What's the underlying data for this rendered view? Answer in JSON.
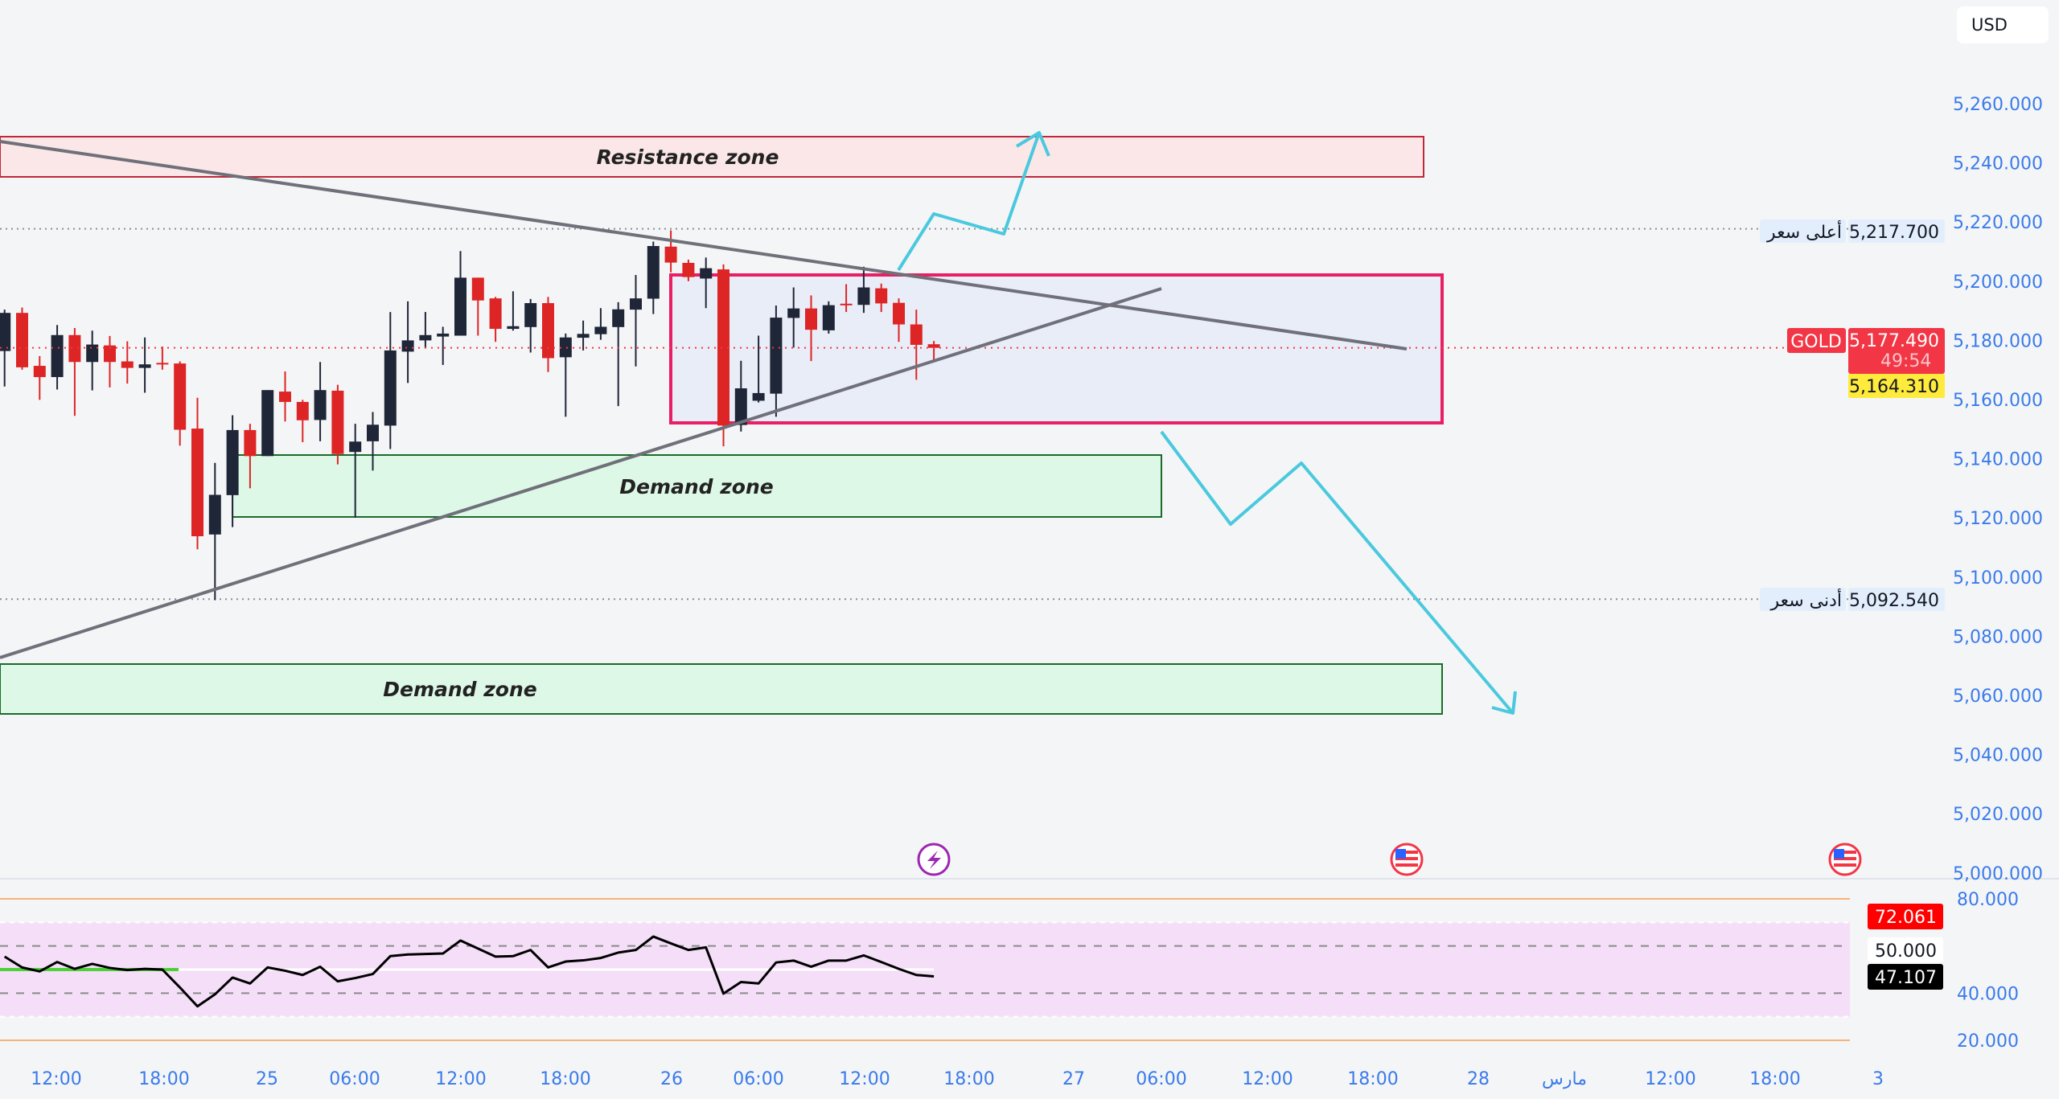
{
  "currency_button": "USD",
  "symbol": "GOLD",
  "current_price": "5,177.490",
  "countdown": "49:54",
  "yellow_price": "5,164.310",
  "high_label": "أعلى سعر",
  "high_price": "5,217.700",
  "low_label": "أدنى سعر",
  "low_price": "5,092.540",
  "zones": {
    "resistance": "Resistance zone",
    "demand_1": "Demand zone",
    "demand_2": "Demand zone"
  },
  "rsi": {
    "value_label": "72.061",
    "mid_label": "50.000",
    "current_label": "47.107",
    "ticks": [
      "80.000",
      "40.000",
      "20.000"
    ]
  },
  "colors": {
    "up": "#1f2637",
    "down": "#dd2526",
    "accent": "#f23645",
    "axis_text": "#3a7bea",
    "arrows": "#4ac9de"
  },
  "chart_data": {
    "type": "candlestick",
    "title": "GOLD",
    "ylabel": "USD",
    "ylim": [
      5000,
      5260
    ],
    "price_ticks": [
      "5,260.000",
      "5,240.000",
      "5,220.000",
      "5,200.000",
      "5,180.000",
      "5,160.000",
      "5,140.000",
      "5,120.000",
      "5,100.000",
      "5,080.000",
      "5,060.000",
      "5,040.000",
      "5,020.000",
      "5,000.000"
    ],
    "price_tick_values": [
      5260,
      5240,
      5220,
      5200,
      5180,
      5160,
      5140,
      5120,
      5100,
      5080,
      5060,
      5040,
      5020,
      5000
    ],
    "x_ticks": [
      "12:00",
      "18:00",
      "25",
      "06:00",
      "12:00",
      "18:00",
      "26",
      "06:00",
      "12:00",
      "18:00",
      "27",
      "06:00",
      "12:00",
      "18:00",
      "28",
      "مارس",
      "12:00",
      "18:00",
      "3"
    ],
    "candles": [
      [
        5176.4,
        5190.4,
        5164.4,
        5189.3
      ],
      [
        5189.3,
        5191.1,
        5170.1,
        5170.9
      ],
      [
        5171.4,
        5174.7,
        5159.9,
        5167.6
      ],
      [
        5167.6,
        5185.2,
        5163.4,
        5181.8
      ],
      [
        5181.8,
        5184.2,
        5154.5,
        5172.7
      ],
      [
        5172.7,
        5183.3,
        5163.1,
        5178.6
      ],
      [
        5178.3,
        5181.5,
        5164.1,
        5172.7
      ],
      [
        5172.9,
        5179.7,
        5165.4,
        5170.7
      ],
      [
        5170.7,
        5181.0,
        5162.3,
        5171.9
      ],
      [
        5172.4,
        5177.9,
        5170.1,
        5171.9
      ],
      [
        5172.2,
        5172.9,
        5144.4,
        5149.8
      ],
      [
        5150.2,
        5160.6,
        5109.4,
        5113.8
      ],
      [
        5114.4,
        5138.6,
        5092.2,
        5127.8
      ],
      [
        5127.7,
        5154.7,
        5116.9,
        5149.7
      ],
      [
        5149.7,
        5151.8,
        5130.0,
        5140.9
      ],
      [
        5140.9,
        5163.2,
        5140.9,
        5163.2
      ],
      [
        5162.7,
        5169.5,
        5152.6,
        5159.2
      ],
      [
        5159.2,
        5159.9,
        5145.6,
        5153.0
      ],
      [
        5153.1,
        5172.7,
        5145.9,
        5163.2
      ],
      [
        5163.0,
        5165.0,
        5138.1,
        5141.6
      ],
      [
        5142.3,
        5151.8,
        5120.1,
        5145.8
      ],
      [
        5145.9,
        5155.8,
        5136.0,
        5151.5
      ],
      [
        5151.2,
        5189.6,
        5143.3,
        5176.6
      ],
      [
        5176.2,
        5193.2,
        5165.6,
        5180.0
      ],
      [
        5180.0,
        5189.6,
        5177.3,
        5181.8
      ],
      [
        5181.3,
        5184.6,
        5171.7,
        5182.3
      ],
      [
        5181.6,
        5210.2,
        5181.6,
        5201.2
      ],
      [
        5201.2,
        5201.2,
        5181.6,
        5193.5
      ],
      [
        5194.2,
        5194.7,
        5179.5,
        5183.9
      ],
      [
        5183.9,
        5196.6,
        5183.3,
        5184.8
      ],
      [
        5184.5,
        5194.0,
        5175.9,
        5192.6
      ],
      [
        5192.6,
        5194.7,
        5169.3,
        5174.0
      ],
      [
        5174.3,
        5182.3,
        5154.2,
        5181.0
      ],
      [
        5180.9,
        5186.7,
        5176.6,
        5182.2
      ],
      [
        5182.1,
        5190.9,
        5180.2,
        5184.6
      ],
      [
        5184.5,
        5192.9,
        5157.8,
        5190.5
      ],
      [
        5190.4,
        5202.1,
        5171.2,
        5194.2
      ],
      [
        5194.1,
        5213.4,
        5188.9,
        5211.9
      ],
      [
        5211.7,
        5217.2,
        5203.0,
        5206.3
      ],
      [
        5206.2,
        5207.3,
        5200.0,
        5201.4
      ],
      [
        5200.9,
        5208.0,
        5190.9,
        5204.4
      ],
      [
        5204.0,
        5205.7,
        5144.2,
        5151.2
      ],
      [
        5151.4,
        5173.1,
        5149.2,
        5163.8
      ],
      [
        5159.6,
        5181.6,
        5159.0,
        5162.2
      ],
      [
        5162.0,
        5191.8,
        5154.2,
        5187.7
      ],
      [
        5187.6,
        5197.9,
        5177.6,
        5190.8
      ],
      [
        5190.8,
        5195.2,
        5173.0,
        5183.6
      ],
      [
        5183.4,
        5193.2,
        5182.3,
        5191.9
      ],
      [
        5192.4,
        5199.0,
        5189.6,
        5192.0
      ],
      [
        5192.0,
        5204.9,
        5189.3,
        5197.9
      ],
      [
        5197.6,
        5199.2,
        5189.6,
        5192.5
      ],
      [
        5192.7,
        5194.2,
        5179.5,
        5185.4
      ],
      [
        5185.4,
        5190.4,
        5166.7,
        5178.5
      ],
      [
        5178.7,
        5179.8,
        5173.0,
        5177.49
      ]
    ],
    "levels": {
      "high": 5217.7,
      "low": 5092.54,
      "current": 5177.49
    },
    "rsi_series": [
      55.5,
      50.9,
      49.2,
      53.2,
      50.3,
      52.4,
      50.7,
      49.8,
      50.3,
      50.0,
      42.4,
      34.4,
      39.5,
      46.6,
      44.1,
      50.9,
      49.5,
      47.7,
      51.2,
      45.0,
      46.4,
      48.1,
      55.7,
      56.4,
      56.6,
      56.8,
      62.3,
      58.9,
      55.5,
      55.7,
      58.3,
      50.9,
      53.4,
      53.9,
      54.9,
      57.2,
      58.3,
      64.0,
      61.1,
      58.3,
      59.4,
      39.8,
      44.7,
      44.1,
      53.0,
      53.8,
      51.2,
      53.8,
      53.8,
      56.0,
      53.2,
      50.3,
      47.7,
      47.1
    ],
    "rsi_levels": {
      "upper": 80,
      "band_top": 70,
      "dash_top": 60,
      "mid": 50,
      "dash_bottom": 40,
      "band_bottom": 30,
      "lower": 20
    }
  }
}
